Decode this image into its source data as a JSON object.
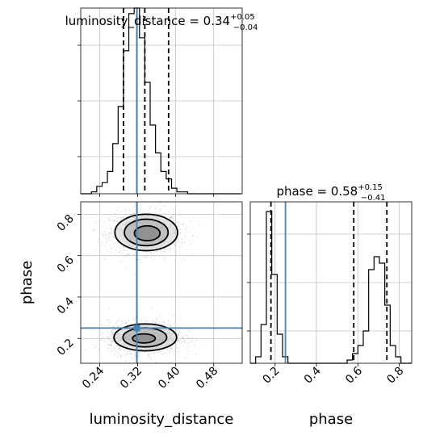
{
  "chart_data": {
    "type": "corner",
    "colors": {
      "histogram": "#000000",
      "truth": "#4682b4",
      "grid": "#c0c0c0",
      "quantile": "#000000",
      "samples": "#9e9e9e"
    },
    "parameters": [
      {
        "name": "luminosity_distance",
        "range": [
          0.2,
          0.54
        ],
        "ticks": [
          0.24,
          0.32,
          0.4,
          0.48
        ],
        "tick_labels": [
          "0.24",
          "0.32",
          "0.40",
          "0.48"
        ],
        "truth": 0.318,
        "quantiles": [
          0.29,
          0.335,
          0.385
        ],
        "title": {
          "prefix": "luminosity_distance = 0.34",
          "plus": "+0.05",
          "minus": "−0.04"
        },
        "hist": {
          "bin_start": 0.2,
          "bin_width": 0.01125,
          "counts": [
            0,
            0,
            1,
            4,
            6,
            12,
            27,
            47,
            77,
            97,
            100,
            84,
            60,
            37,
            22,
            12,
            8,
            3,
            1,
            1,
            0,
            0,
            0,
            0,
            0,
            0,
            0,
            0,
            0,
            0
          ]
        }
      },
      {
        "name": "phase",
        "range": [
          0.08,
          0.86
        ],
        "ticks": [
          0.2,
          0.4,
          0.6,
          0.8
        ],
        "tick_labels": [
          "0.2",
          "0.4",
          "0.6",
          "0.8"
        ],
        "truth": 0.25,
        "quantiles": [
          0.18,
          0.58,
          0.74
        ],
        "title": {
          "prefix": "phase = 0.58",
          "plus": "+0.15",
          "minus": "−0.41"
        },
        "hist": {
          "bin_start": 0.08,
          "bin_width": 0.026,
          "counts": [
            0,
            4,
            24,
            94,
            55,
            18,
            4,
            0,
            0,
            0,
            0,
            0,
            0,
            0,
            0,
            0,
            0,
            0,
            2,
            6,
            11,
            20,
            58,
            66,
            62,
            36,
            11,
            4,
            0,
            0
          ]
        }
      }
    ],
    "panel_1d_ylim": [
      0,
      100
    ],
    "density_2d": {
      "modes": [
        {
          "cx": 0.335,
          "cy": 0.71,
          "sx": 0.032,
          "sy": 0.045,
          "n": 1400
        },
        {
          "cx": 0.335,
          "cy": 0.205,
          "sx": 0.033,
          "sy": 0.035,
          "n": 1600
        }
      ],
      "contours": [
        {
          "cx": 0.338,
          "cy": 0.712,
          "rx": 0.066,
          "ry": 0.088
        },
        {
          "cx": 0.338,
          "cy": 0.712,
          "rx": 0.046,
          "ry": 0.064
        },
        {
          "cx": 0.34,
          "cy": 0.708,
          "rx": 0.027,
          "ry": 0.036
        },
        {
          "cx": 0.336,
          "cy": 0.205,
          "rx": 0.066,
          "ry": 0.065
        },
        {
          "cx": 0.335,
          "cy": 0.205,
          "rx": 0.046,
          "ry": 0.046
        },
        {
          "cx": 0.333,
          "cy": 0.2,
          "rx": 0.024,
          "ry": 0.022
        }
      ],
      "truth_point": {
        "x": 0.318,
        "y": 0.25
      }
    }
  }
}
